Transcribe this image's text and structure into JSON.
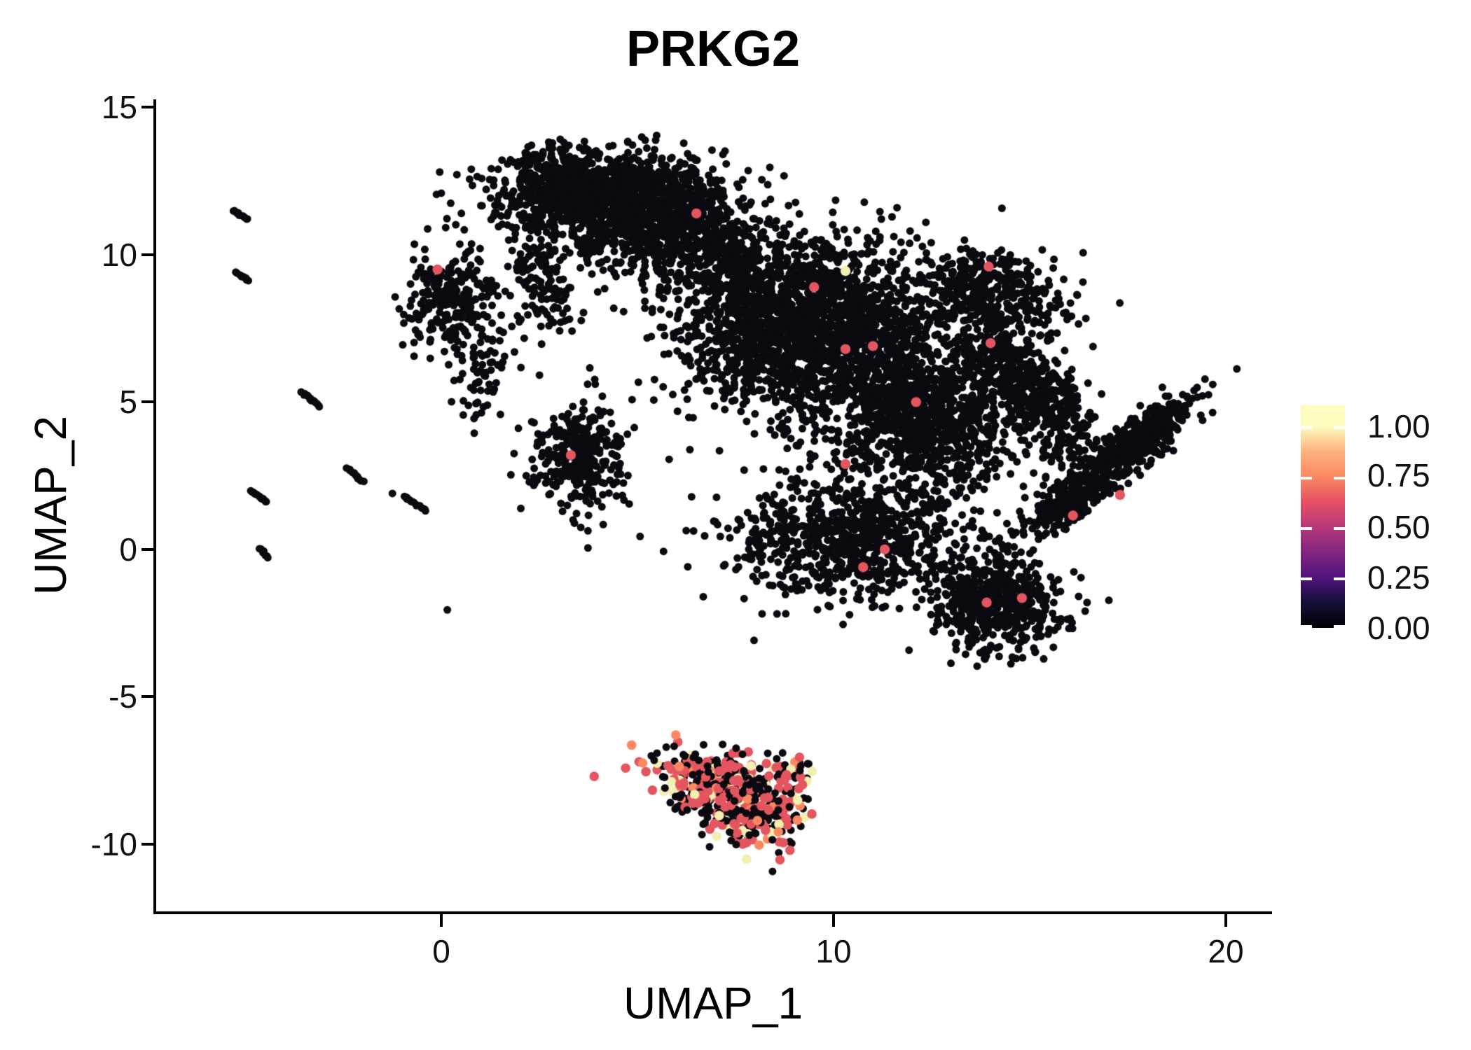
{
  "colors": {
    "background": "#FFFFFF",
    "axis": "#000000",
    "text": "#111111"
  },
  "chart_data": {
    "type": "scatter",
    "title": "PRKG2",
    "xlabel": "UMAP_1",
    "ylabel": "UMAP_2",
    "xlim": [
      -7.29,
      21.14
    ],
    "ylim": [
      -12.28,
      15.27
    ],
    "grid": false,
    "x_ticks": {
      "labels": [
        "0",
        "10",
        "20"
      ],
      "values": [
        0,
        10,
        20
      ]
    },
    "y_ticks": {
      "labels": [
        "15",
        "10",
        "5",
        "0",
        "-5",
        "-10"
      ],
      "values": [
        15,
        10,
        5,
        0,
        -5,
        -10
      ]
    },
    "legend": {
      "position": "right",
      "tick_labels": [
        "1.00",
        "0.75",
        "0.50",
        "0.25",
        "0.00"
      ],
      "tick_values": [
        1.0,
        0.75,
        0.5,
        0.25,
        0.0
      ],
      "bar_value_max": 1.104,
      "gradient_stops": [
        {
          "v": 0.0,
          "c": "#000004"
        },
        {
          "v": 0.125,
          "c": "#140E36"
        },
        {
          "v": 0.25,
          "c": "#51127C"
        },
        {
          "v": 0.375,
          "c": "#822681"
        },
        {
          "v": 0.5,
          "c": "#B63779"
        },
        {
          "v": 0.625,
          "c": "#E65164"
        },
        {
          "v": 0.75,
          "c": "#FB8861"
        },
        {
          "v": 0.875,
          "c": "#FDB27E"
        },
        {
          "v": 1.0,
          "c": "#FCFDBF"
        }
      ]
    },
    "point_colors": {
      "zero": "#0B0A10",
      "mid": "#E4565F",
      "high": "#F2EFB0",
      "warm": "#FB8861"
    },
    "point_radius": {
      "base": 5.5,
      "colored": 6.8,
      "highlight": 7.2
    },
    "clusters": [
      {
        "cx": 4.2,
        "cy": 12.2,
        "sx": 1.3,
        "sy": 0.65,
        "rot": 0,
        "n": 850
      },
      {
        "cx": 4.9,
        "cy": 11.1,
        "sx": 1.5,
        "sy": 0.75,
        "rot": -8,
        "n": 720
      },
      {
        "cx": 2.8,
        "cy": 12.4,
        "sx": 0.55,
        "sy": 0.5,
        "rot": 0,
        "n": 150
      },
      {
        "cx": 2.6,
        "cy": 8.9,
        "sx": 0.38,
        "sy": 0.85,
        "rot": 10,
        "n": 120
      },
      {
        "cx": 6.4,
        "cy": 11.7,
        "sx": 0.6,
        "sy": 0.75,
        "rot": 0,
        "n": 120
      },
      {
        "cx": 6.9,
        "cy": 10.6,
        "sx": 0.5,
        "sy": 0.6,
        "rot": 0,
        "n": 60
      },
      {
        "cx": 5.8,
        "cy": 9.5,
        "sx": 1.0,
        "sy": 0.7,
        "rot": 0,
        "n": 90
      },
      {
        "cx": 0.3,
        "cy": 8.4,
        "sx": 0.6,
        "sy": 0.8,
        "rot": 0,
        "n": 270
      },
      {
        "cx": 1.1,
        "cy": 5.9,
        "sx": 0.45,
        "sy": 0.85,
        "rot": -20,
        "n": 60
      },
      {
        "cx": 3.5,
        "cy": 3.1,
        "sx": 0.6,
        "sy": 0.95,
        "rot": 0,
        "n": 300
      },
      {
        "cx": 9.3,
        "cy": 7.6,
        "sx": 1.55,
        "sy": 1.45,
        "rot": 0,
        "n": 2000
      },
      {
        "cx": 7.4,
        "cy": 9.3,
        "sx": 0.6,
        "sy": 0.8,
        "rot": 0,
        "n": 170
      },
      {
        "cx": 14.0,
        "cy": 8.6,
        "sx": 0.95,
        "sy": 0.75,
        "rot": -15,
        "n": 420
      },
      {
        "cx": 12.3,
        "cy": 4.6,
        "sx": 1.35,
        "sy": 1.2,
        "rot": 0,
        "n": 1150
      },
      {
        "cx": 14.2,
        "cy": 6.6,
        "sx": 0.5,
        "sy": 0.5,
        "rot": 0,
        "n": 140
      },
      {
        "cx": 15.2,
        "cy": 5.5,
        "sx": 0.5,
        "sy": 0.6,
        "rot": 0,
        "n": 160
      },
      {
        "cx": 15.7,
        "cy": 4.2,
        "sx": 0.45,
        "sy": 0.7,
        "rot": 0,
        "n": 150
      },
      {
        "cx": 10.5,
        "cy": 0.4,
        "sx": 1.5,
        "sy": 1.05,
        "rot": 0,
        "n": 820
      },
      {
        "cx": 14.1,
        "cy": -1.9,
        "sx": 0.8,
        "sy": 0.8,
        "rot": 0,
        "n": 560
      },
      {
        "cx": 16.2,
        "cy": 1.9,
        "sx": 1.0,
        "sy": 0.33,
        "rot": 46,
        "n": 330
      },
      {
        "cx": 17.9,
        "cy": 3.8,
        "sx": 0.95,
        "sy": 0.33,
        "rot": 46,
        "n": 320
      },
      {
        "cx": 6.9,
        "cy": -7.9,
        "sx": 0.8,
        "sy": 0.5,
        "rot": -15,
        "n": 330,
        "kind": "mix"
      },
      {
        "cx": 8.0,
        "cy": -8.9,
        "sx": 0.55,
        "sy": 0.65,
        "rot": 0,
        "n": 250,
        "kind": "mix"
      },
      {
        "cx": 8.95,
        "cy": -7.5,
        "sx": 0.3,
        "sy": 0.2,
        "rot": -30,
        "n": 40,
        "kind": "mix"
      }
    ],
    "mix_weights": {
      "zero": 0.5,
      "mid": 0.33,
      "high": 0.1,
      "warm": 0.07
    },
    "streaks": [
      {
        "x1": -5.3,
        "y1": 11.5,
        "x2": -4.95,
        "y2": 11.2,
        "n": 10
      },
      {
        "x1": -5.25,
        "y1": 9.4,
        "x2": -4.9,
        "y2": 9.12,
        "n": 9
      },
      {
        "x1": -3.55,
        "y1": 5.35,
        "x2": -3.1,
        "y2": 4.85,
        "n": 13
      },
      {
        "x1": -4.85,
        "y1": 2.0,
        "x2": -4.45,
        "y2": 1.6,
        "n": 13
      },
      {
        "x1": -2.4,
        "y1": 2.75,
        "x2": -2.0,
        "y2": 2.3,
        "n": 11
      },
      {
        "x1": -0.95,
        "y1": 1.8,
        "x2": -0.4,
        "y2": 1.3,
        "n": 14
      },
      {
        "x1": -4.62,
        "y1": 0.05,
        "x2": -4.42,
        "y2": -0.3,
        "n": 7
      }
    ],
    "singletons": [
      {
        "x": -1.25,
        "y": 1.9
      },
      {
        "x": 0.15,
        "y": -2.05
      }
    ],
    "highlights": [
      {
        "x": -0.1,
        "y": 9.5,
        "c": "mid"
      },
      {
        "x": 3.3,
        "y": 3.2,
        "c": "mid"
      },
      {
        "x": 6.5,
        "y": 11.4,
        "c": "mid"
      },
      {
        "x": 9.5,
        "y": 8.9,
        "c": "mid"
      },
      {
        "x": 10.3,
        "y": 9.45,
        "c": "high"
      },
      {
        "x": 10.3,
        "y": 6.8,
        "c": "mid"
      },
      {
        "x": 11.0,
        "y": 6.9,
        "c": "mid"
      },
      {
        "x": 13.95,
        "y": 9.6,
        "c": "mid"
      },
      {
        "x": 14.0,
        "y": 7.0,
        "c": "mid"
      },
      {
        "x": 12.1,
        "y": 5.0,
        "c": "mid"
      },
      {
        "x": 10.3,
        "y": 2.9,
        "c": "mid"
      },
      {
        "x": 11.3,
        "y": 0.0,
        "c": "mid"
      },
      {
        "x": 10.75,
        "y": -0.6,
        "c": "mid"
      },
      {
        "x": 13.9,
        "y": -1.8,
        "c": "mid"
      },
      {
        "x": 14.8,
        "y": -1.65,
        "c": "mid"
      },
      {
        "x": 16.1,
        "y": 1.15,
        "c": "mid"
      },
      {
        "x": 17.3,
        "y": 1.85,
        "c": "mid"
      }
    ]
  }
}
